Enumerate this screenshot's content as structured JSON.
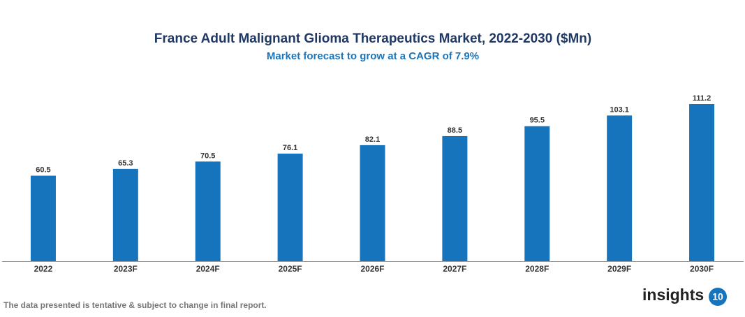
{
  "chart_data": {
    "type": "bar",
    "title": "France Adult Malignant Glioma Therapeutics Market, 2022-2030 ($Mn)",
    "subtitle": "Market forecast to grow at a CAGR of 7.9%",
    "categories": [
      "2022",
      "2023F",
      "2024F",
      "2025F",
      "2026F",
      "2027F",
      "2028F",
      "2029F",
      "2030F"
    ],
    "values": [
      60.5,
      65.3,
      70.5,
      76.1,
      82.1,
      88.5,
      95.5,
      103.1,
      111.2
    ],
    "color": "#1574bc",
    "footnote": "The data presented is tentative & subject to change in final report.",
    "logo": {
      "text": "insights",
      "number": "10"
    }
  }
}
